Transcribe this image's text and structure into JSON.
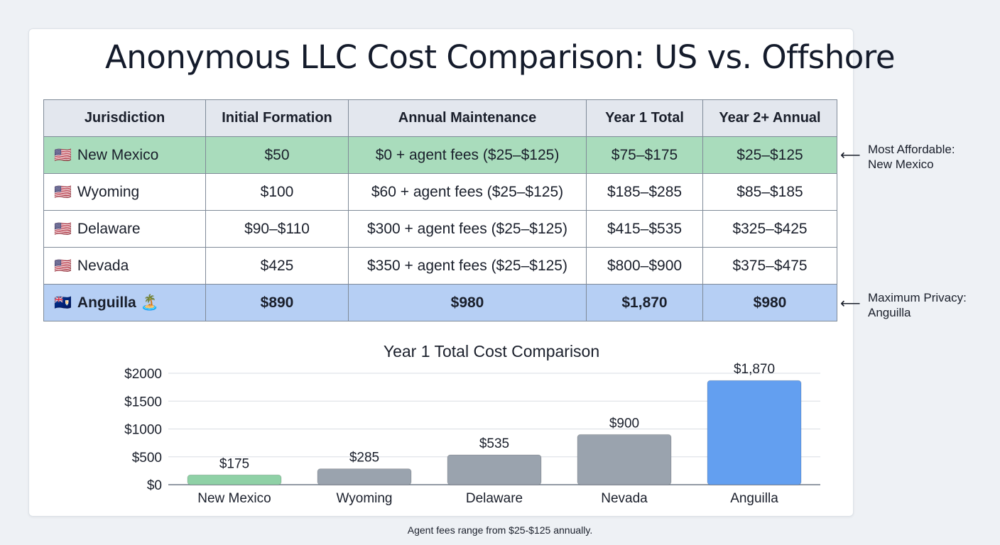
{
  "title": "Anonymous LLC Cost Comparison: US vs. Offshore",
  "table": {
    "headers": [
      "Jurisdiction",
      "Initial Formation",
      "Annual Maintenance",
      "Year 1 Total",
      "Year 2+ Annual"
    ],
    "rows": [
      {
        "flag": "🇺🇸",
        "extra": "",
        "cells": [
          "New Mexico",
          "$50",
          "$0 + agent fees ($25–$125)",
          "$75–$175",
          "$25–$125"
        ]
      },
      {
        "flag": "🇺🇸",
        "extra": "",
        "cells": [
          "Wyoming",
          "$100",
          "$60 + agent fees ($25–$125)",
          "$185–$285",
          "$85–$185"
        ]
      },
      {
        "flag": "🇺🇸",
        "extra": "",
        "cells": [
          "Delaware",
          "$90–$110",
          "$300 + agent fees ($25–$125)",
          "$415–$535",
          "$325–$425"
        ]
      },
      {
        "flag": "🇺🇸",
        "extra": "",
        "cells": [
          "Nevada",
          "$425",
          "$350 + agent fees ($25–$125)",
          "$800–$900",
          "$375–$475"
        ]
      },
      {
        "flag": "🇦🇮",
        "extra": "🏝️",
        "cells": [
          "Anguilla",
          "$890",
          "$980",
          "$1,870",
          "$980"
        ]
      }
    ]
  },
  "annotations": {
    "affordable": {
      "line1": "Most Affordable:",
      "line2": "New Mexico"
    },
    "privacy": {
      "line1": "Maximum Privacy:",
      "line2": "Anguilla"
    }
  },
  "chart_data": {
    "type": "bar",
    "title": "Year 1 Total Cost Comparison",
    "categories": [
      "New Mexico",
      "Wyoming",
      "Delaware",
      "Nevada",
      "Anguilla"
    ],
    "values": [
      175,
      285,
      535,
      900,
      1870
    ],
    "data_labels": [
      "$175",
      "$285",
      "$535",
      "$900",
      "$1,870"
    ],
    "colors": [
      "#8fd1a6",
      "#9aa3ae",
      "#9aa3ae",
      "#9aa3ae",
      "#639ff0"
    ],
    "yticks": [
      0,
      500,
      1000,
      1500,
      2000
    ],
    "ytick_labels": [
      "$0",
      "$500",
      "$1000",
      "$1500",
      "$2000"
    ],
    "ylim": [
      0,
      2000
    ],
    "grid": true,
    "xlabel": "",
    "ylabel": ""
  },
  "footnote": "Agent fees range from $25-$125 annually.",
  "colors": {
    "green_row": "#a9dcbc",
    "blue_row": "#b6cff4",
    "header": "#e3e7ee"
  }
}
